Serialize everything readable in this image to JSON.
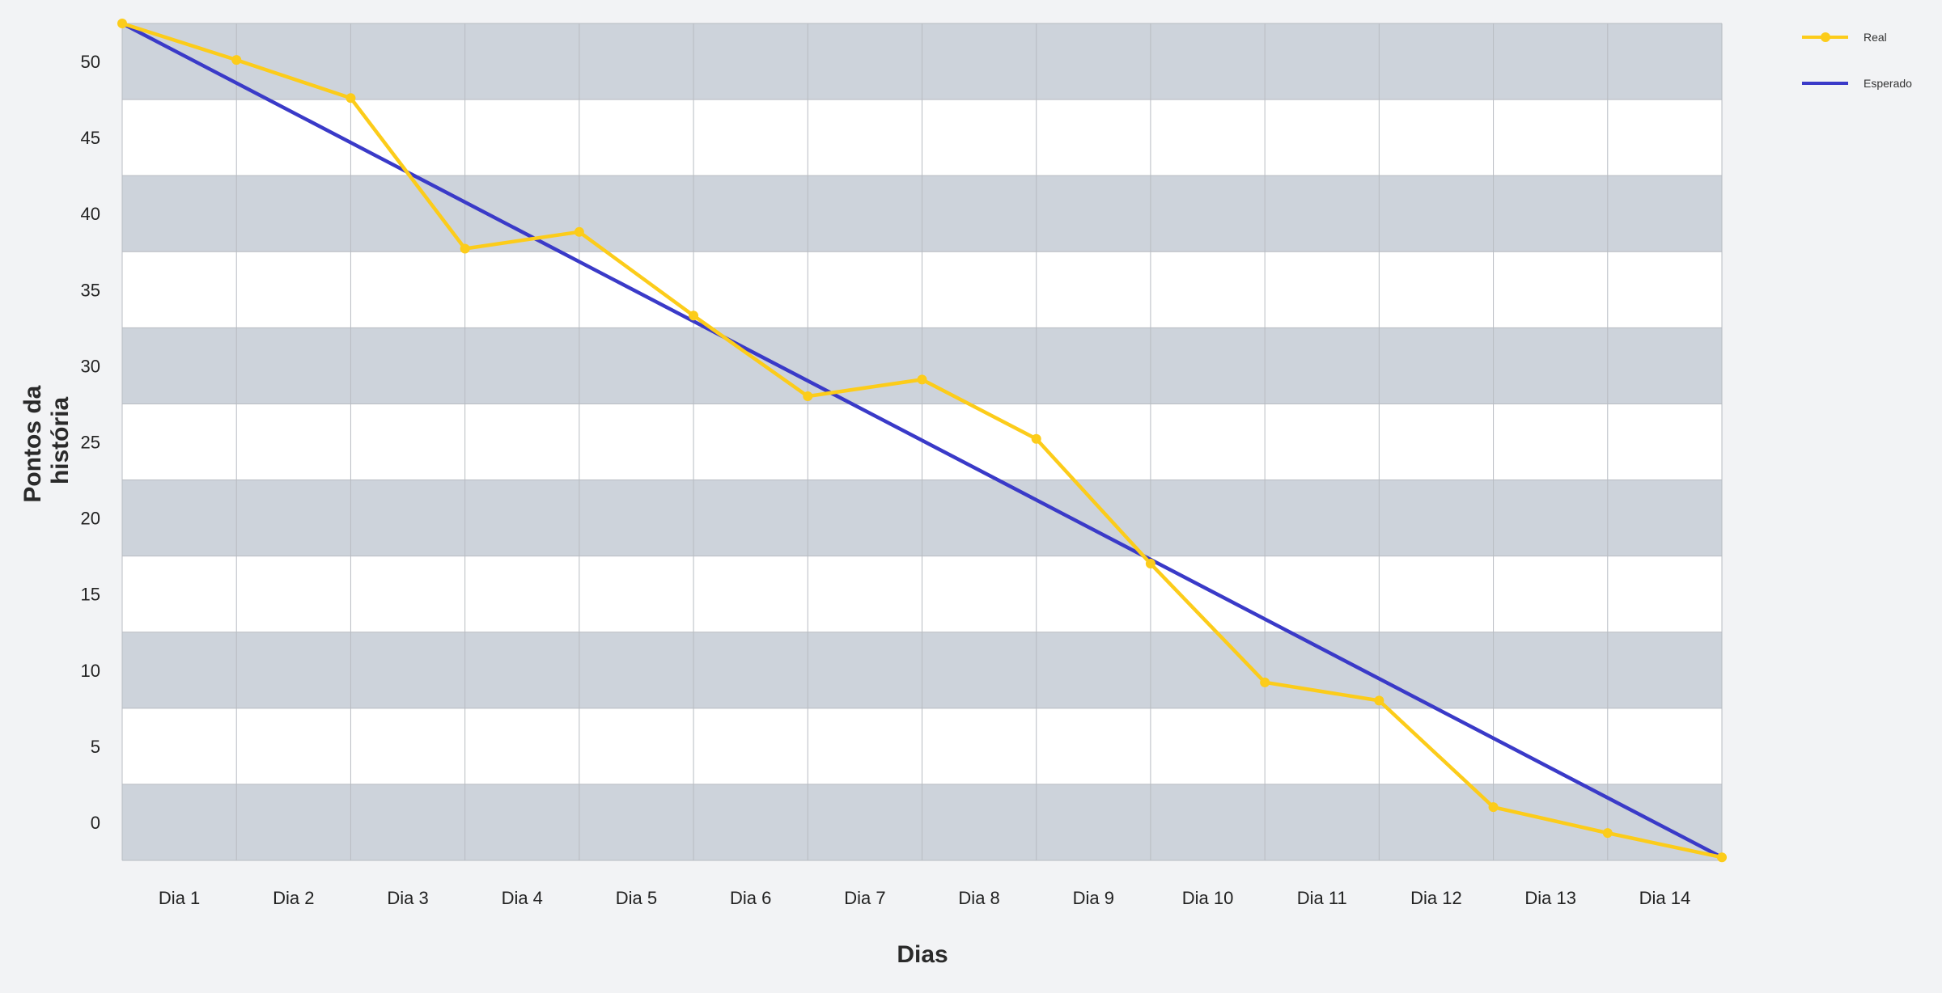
{
  "chart_data": {
    "type": "line",
    "title": "",
    "xlabel": "Dias",
    "ylabel": "Pontos da história",
    "ylabel_lines": [
      "Pontos da",
      "história"
    ],
    "categories": [
      "Dia 1",
      "Dia 2",
      "Dia 3",
      "Dia 4",
      "Dia 5",
      "Dia 6",
      "Dia 7",
      "Dia 8",
      "Dia 9",
      "Dia 10",
      "Dia 11",
      "Dia 12",
      "Dia 13",
      "Dia 14"
    ],
    "y_ticks": [
      0,
      5,
      10,
      15,
      20,
      25,
      30,
      35,
      40,
      45,
      50
    ],
    "ylim": [
      -2.5,
      52.5
    ],
    "grid": true,
    "legend": "top-right",
    "series": [
      {
        "name": "Real",
        "color": "#fccc1a",
        "marker": "circle",
        "x": [
          0,
          1,
          2,
          3,
          4,
          5,
          6,
          7,
          8,
          9,
          10,
          11,
          12,
          13,
          14
        ],
        "values": [
          52.5,
          50.1,
          47.6,
          37.7,
          38.8,
          33.3,
          28.0,
          29.1,
          25.2,
          17.0,
          9.2,
          8.0,
          1.0,
          -0.7,
          -2.3
        ]
      },
      {
        "name": "Esperado",
        "color": "#3a3ac8",
        "marker": "none",
        "x": [
          0,
          14
        ],
        "values": [
          52.5,
          -2.3
        ]
      }
    ],
    "band_colors": [
      "#cdd3db",
      "#ffffff"
    ],
    "gridline_color": "#b8bcc2"
  }
}
